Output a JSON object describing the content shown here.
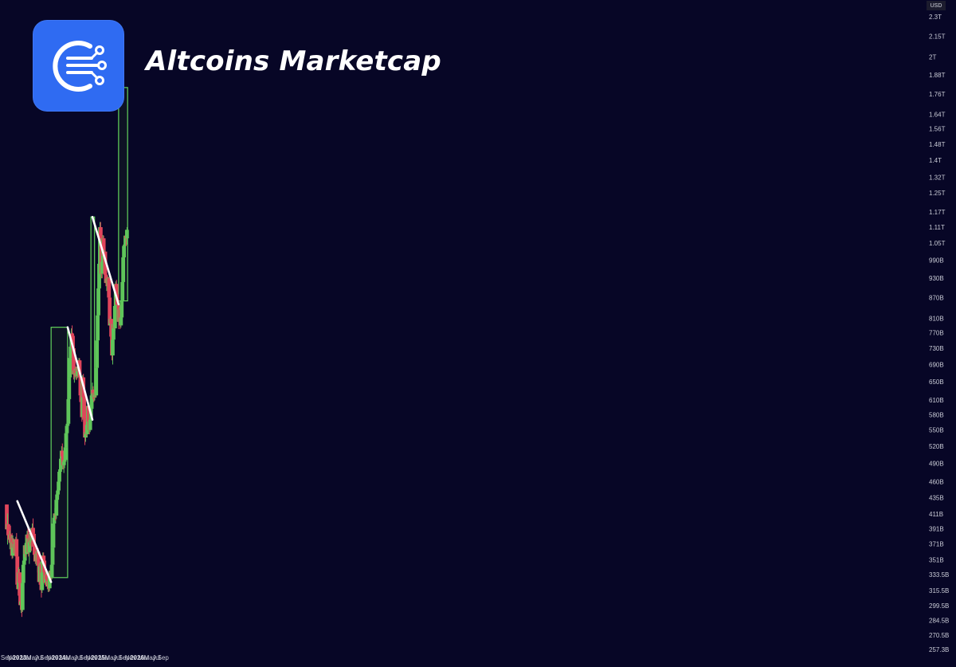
{
  "header": {
    "title": "Altcoins Marketcap",
    "logo_icon": "circuit-c-logo-icon"
  },
  "colors": {
    "background": "#070626",
    "up": "#5fc55a",
    "down": "#e0455b",
    "box_stroke": "#62d45c",
    "box_fill": "#101425",
    "trendline": "#ffffff",
    "logo": "#2f6bf2"
  },
  "chart_data": {
    "type": "candlestick",
    "currency": "USD",
    "y_scale": "log",
    "ylim": [
      "257.3B",
      "2.3T"
    ],
    "y_ticks": [
      "2.3T",
      "2.15T",
      "2T",
      "1.88T",
      "1.76T",
      "1.64T",
      "1.56T",
      "1.48T",
      "1.4T",
      "1.32T",
      "1.25T",
      "1.17T",
      "1.11T",
      "1.05T",
      "990B",
      "930B",
      "870B",
      "810B",
      "770B",
      "730B",
      "690B",
      "650B",
      "610B",
      "580B",
      "550B",
      "520B",
      "490B",
      "460B",
      "435B",
      "411B",
      "391B",
      "371B",
      "351B",
      "333.5B",
      "315.5B",
      "299.5B",
      "284.5B",
      "270.5B",
      "257.3B"
    ],
    "x_ticks": [
      "Sep",
      "Nov",
      "2023",
      "Mar",
      "May",
      "Jul",
      "Sep",
      "Nov",
      "2024",
      "Mar",
      "May",
      "Jul",
      "Sep",
      "Nov",
      "2025",
      "Mar",
      "May",
      "Jul",
      "Sep",
      "Nov",
      "2026",
      "Mar",
      "May",
      "Jul",
      "Sep"
    ],
    "candle_interval": "1 week",
    "candles_ohlc_billions": [
      [
        425,
        425,
        382,
        390
      ],
      [
        390,
        412,
        370,
        397
      ],
      [
        397,
        398,
        376,
        384
      ],
      [
        384,
        395,
        372,
        377
      ],
      [
        377,
        388,
        364,
        383
      ],
      [
        383,
        395,
        370,
        373
      ],
      [
        373,
        382,
        361,
        378
      ],
      [
        378,
        385,
        352,
        356
      ],
      [
        356,
        382,
        353,
        373
      ],
      [
        373,
        378,
        360,
        366
      ],
      [
        366,
        375,
        358,
        371
      ],
      [
        371,
        375,
        356,
        359
      ],
      [
        359,
        380,
        357,
        377
      ],
      [
        377,
        385,
        352,
        355
      ],
      [
        355,
        362,
        318,
        322
      ],
      [
        322,
        330,
        310,
        317
      ],
      [
        317,
        342,
        313,
        336
      ],
      [
        336,
        340,
        320,
        324
      ],
      [
        324,
        328,
        296,
        300
      ],
      [
        300,
        310,
        292,
        304
      ],
      [
        304,
        302,
        288,
        295
      ],
      [
        295,
        328,
        293,
        324
      ],
      [
        324,
        348,
        320,
        345
      ],
      [
        345,
        352,
        336,
        350
      ],
      [
        350,
        372,
        345,
        369
      ],
      [
        369,
        380,
        354,
        358
      ],
      [
        358,
        374,
        350,
        370
      ],
      [
        370,
        388,
        360,
        383
      ],
      [
        383,
        394,
        370,
        378
      ],
      [
        378,
        390,
        355,
        360
      ],
      [
        360,
        383,
        346,
        378
      ],
      [
        378,
        384,
        368,
        373
      ],
      [
        373,
        388,
        366,
        385
      ],
      [
        385,
        386,
        362,
        375
      ],
      [
        375,
        398,
        370,
        392
      ],
      [
        392,
        405,
        382,
        384
      ],
      [
        384,
        390,
        364,
        367
      ],
      [
        367,
        370,
        354,
        357
      ],
      [
        357,
        362,
        346,
        349
      ],
      [
        349,
        362,
        344,
        358
      ],
      [
        358,
        362,
        344,
        349
      ],
      [
        349,
        364,
        336,
        361
      ],
      [
        361,
        365,
        345,
        348
      ],
      [
        348,
        350,
        322,
        325
      ],
      [
        325,
        347,
        319,
        343
      ],
      [
        343,
        349,
        336,
        346
      ],
      [
        346,
        350,
        308,
        316
      ],
      [
        316,
        340,
        313,
        336
      ],
      [
        336,
        360,
        333,
        356
      ],
      [
        356,
        360,
        344,
        350
      ],
      [
        350,
        352,
        330,
        336
      ],
      [
        336,
        341,
        322,
        324
      ],
      [
        324,
        336,
        320,
        333
      ],
      [
        333,
        340,
        323,
        328
      ],
      [
        328,
        334,
        317,
        320
      ],
      [
        320,
        330,
        314,
        326
      ],
      [
        326,
        330,
        314,
        318
      ],
      [
        318,
        335,
        315,
        332
      ],
      [
        332,
        343,
        326,
        338
      ],
      [
        338,
        336,
        325,
        330
      ],
      [
        330,
        352,
        328,
        345
      ],
      [
        345,
        370,
        340,
        366
      ],
      [
        366,
        400,
        362,
        398
      ],
      [
        398,
        412,
        385,
        406
      ],
      [
        406,
        420,
        398,
        412
      ],
      [
        412,
        420,
        402,
        409
      ],
      [
        409,
        438,
        404,
        432
      ],
      [
        432,
        448,
        422,
        440
      ],
      [
        440,
        452,
        428,
        446
      ],
      [
        446,
        468,
        436,
        460
      ],
      [
        460,
        484,
        450,
        476
      ],
      [
        476,
        490,
        462,
        480
      ],
      [
        480,
        505,
        472,
        498
      ],
      [
        498,
        520,
        486,
        512
      ],
      [
        512,
        525,
        494,
        502
      ],
      [
        502,
        508,
        480,
        487
      ],
      [
        487,
        496,
        474,
        493
      ],
      [
        493,
        505,
        482,
        496
      ],
      [
        496,
        525,
        488,
        518
      ],
      [
        518,
        550,
        510,
        544
      ],
      [
        544,
        565,
        535,
        558
      ],
      [
        558,
        566,
        540,
        562
      ],
      [
        562,
        620,
        558,
        612
      ],
      [
        612,
        668,
        602,
        660
      ],
      [
        660,
        714,
        650,
        706
      ],
      [
        706,
        744,
        688,
        734
      ],
      [
        734,
        782,
        720,
        768
      ],
      [
        768,
        790,
        742,
        762
      ],
      [
        762,
        770,
        722,
        730
      ],
      [
        730,
        735,
        655,
        667
      ],
      [
        667,
        680,
        648,
        676
      ],
      [
        676,
        686,
        660,
        664
      ],
      [
        664,
        675,
        655,
        670
      ],
      [
        670,
        676,
        654,
        663
      ],
      [
        663,
        690,
        658,
        685
      ],
      [
        685,
        696,
        664,
        674
      ],
      [
        674,
        706,
        668,
        700
      ],
      [
        700,
        705,
        654,
        660
      ],
      [
        660,
        665,
        612,
        620
      ],
      [
        620,
        642,
        598,
        606
      ],
      [
        606,
        612,
        566,
        575
      ],
      [
        575,
        665,
        570,
        660
      ],
      [
        660,
        668,
        612,
        616
      ],
      [
        616,
        620,
        566,
        572
      ],
      [
        572,
        578,
        522,
        536
      ],
      [
        536,
        548,
        528,
        546
      ],
      [
        546,
        560,
        538,
        542
      ],
      [
        542,
        568,
        536,
        560
      ],
      [
        560,
        610,
        555,
        598
      ],
      [
        598,
        605,
        560,
        566
      ],
      [
        566,
        575,
        542,
        550
      ],
      [
        550,
        575,
        546,
        570
      ],
      [
        570,
        598,
        565,
        592
      ],
      [
        592,
        626,
        585,
        620
      ],
      [
        620,
        648,
        608,
        632
      ],
      [
        632,
        640,
        612,
        624
      ],
      [
        624,
        633,
        606,
        617
      ],
      [
        617,
        632,
        610,
        626
      ],
      [
        626,
        645,
        615,
        620
      ],
      [
        620,
        690,
        615,
        682
      ],
      [
        682,
        758,
        675,
        750
      ],
      [
        750,
        826,
        740,
        818
      ],
      [
        818,
        905,
        805,
        898
      ],
      [
        898,
        985,
        880,
        978
      ],
      [
        978,
        1130,
        965,
        1110
      ],
      [
        1110,
        1130,
        1040,
        1068
      ],
      [
        1068,
        1080,
        930,
        945
      ],
      [
        945,
        995,
        930,
        985
      ],
      [
        985,
        1080,
        975,
        1068
      ],
      [
        1068,
        1078,
        990,
        1004
      ],
      [
        1004,
        1025,
        940,
        1020
      ],
      [
        1020,
        1025,
        930,
        942
      ],
      [
        942,
        948,
        905,
        915
      ],
      [
        915,
        932,
        890,
        928
      ],
      [
        928,
        935,
        895,
        905
      ],
      [
        905,
        936,
        880,
        930
      ],
      [
        930,
        934,
        850,
        870
      ],
      [
        870,
        878,
        760,
        790
      ],
      [
        790,
        815,
        760,
        808
      ],
      [
        808,
        825,
        780,
        795
      ],
      [
        795,
        800,
        700,
        712
      ],
      [
        712,
        765,
        690,
        752
      ],
      [
        752,
        800,
        745,
        794
      ],
      [
        794,
        798,
        780,
        782
      ],
      [
        782,
        852,
        775,
        845
      ],
      [
        845,
        920,
        835,
        912
      ],
      [
        912,
        925,
        870,
        880
      ],
      [
        880,
        895,
        840,
        848
      ],
      [
        848,
        855,
        828,
        848
      ],
      [
        848,
        858,
        780,
        800
      ],
      [
        800,
        840,
        790,
        835
      ],
      [
        835,
        845,
        780,
        790
      ],
      [
        790,
        818,
        784,
        812
      ],
      [
        812,
        870,
        806,
        860
      ],
      [
        860,
        930,
        852,
        918
      ],
      [
        918,
        1005,
        910,
        1000
      ],
      [
        1000,
        1050,
        990,
        1040
      ],
      [
        1040,
        1070,
        1000,
        1045
      ],
      [
        1045,
        1085,
        1030,
        1078
      ],
      [
        1078,
        1100,
        1040,
        1068
      ],
      [
        1068,
        1110,
        1055,
        1100
      ]
    ],
    "trendlines": [
      {
        "from": [
          "2022-12-12",
          "430B"
        ],
        "to": [
          "2023-10-23",
          "325B"
        ]
      },
      {
        "from": [
          "2024-03-25",
          "785B"
        ],
        "to": [
          "2024-11-11",
          "570B"
        ]
      },
      {
        "from": [
          "2024-11-11",
          "1.15T"
        ],
        "to": [
          "2025-07-13",
          "850B"
        ]
      }
    ],
    "target_boxes": [
      {
        "from": "2023-10-23",
        "to": "2024-03-25",
        "low": "330B",
        "high": "785B"
      },
      {
        "from": "2024-10-28",
        "to": "2024-12-01",
        "low": "610B",
        "high": "1.15T"
      },
      {
        "from": "2025-07-13",
        "to": "2025-10-05",
        "low": "860B",
        "high": "1.80T"
      }
    ]
  }
}
